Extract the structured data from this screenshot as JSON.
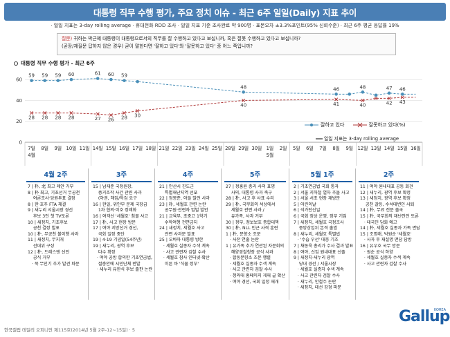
{
  "header": {
    "title": "대통령 직무 수행 평가, 주요 정치 이슈 - 최근 6주 일일(Daily) 지표 추이",
    "subtitle": "· 일일 지표는 3-day rolling average  · 휴대전화 RDD 조사  · 일일 지표 기준 조사완료 약 900명 · 표본오차 ±3.3%포인트(95% 신뢰수준) · 최근 6주 평균 응답률 19%"
  },
  "question": {
    "label": "질문)",
    "line1": "귀하는 박근혜 대통령이 대통령으로서의 직무를 잘 수행하고 있다고 보십니까, 혹은 잘못 수행하고 있다고 보십니까?",
    "line2": "(곧장/재질문 답하지 않은 경우) 굳이 말한다면 '잘하고 있다'와 '잘못하고 있다' 중 어느 쪽입니까?"
  },
  "chart_heading": "대통령 직무 수행 평가 - 최근 6주",
  "legend": {
    "approve": "잘하고 있다",
    "disapprove": "잘못하고 있다(%)",
    "note": "일일 지표는 3-day rolling average"
  },
  "colors": {
    "approve": "#4a8fb8",
    "disapprove": "#b03a3a",
    "heading": "#1f5fa5"
  },
  "chart_data": {
    "type": "line",
    "ylim": [
      0,
      70
    ],
    "yticks": [
      0,
      20,
      40,
      60
    ],
    "x": [
      "7일",
      "8일",
      "9일",
      "10일",
      "11일",
      "14일",
      "15일",
      "16일",
      "17일",
      "18일",
      "21일",
      "22일",
      "23일",
      "24일",
      "25일",
      "28일",
      "29일",
      "30일",
      "1일",
      "2일",
      "5일",
      "6일",
      "7일",
      "8일",
      "9일",
      "12일",
      "13일",
      "14일",
      "15일",
      "16일"
    ],
    "x_sub": {
      "0": "4월",
      "18": "5월"
    },
    "series": [
      {
        "name": "잘하고 있다",
        "values": [
          59,
          59,
          59,
          60,
          null,
          61,
          60,
          59,
          58,
          null,
          null,
          null,
          null,
          null,
          null,
          null,
          48,
          null,
          null,
          null,
          null,
          null,
          null,
          46,
          46,
          48,
          45,
          47,
          46,
          null
        ],
        "labeled": [
          true,
          true,
          true,
          true,
          false,
          true,
          true,
          true,
          false,
          false,
          false,
          false,
          false,
          false,
          false,
          false,
          true,
          false,
          false,
          false,
          false,
          false,
          false,
          true,
          false,
          true,
          false,
          true,
          true,
          false
        ]
      },
      {
        "name": "잘못하고 있다",
        "values": [
          28,
          28,
          28,
          28,
          null,
          27,
          26,
          28,
          30,
          null,
          null,
          null,
          null,
          null,
          null,
          null,
          40,
          null,
          null,
          null,
          null,
          null,
          null,
          41,
          null,
          40,
          42,
          42,
          43,
          null
        ],
        "labeled": [
          true,
          true,
          true,
          true,
          false,
          true,
          true,
          true,
          true,
          false,
          false,
          false,
          false,
          false,
          false,
          false,
          true,
          false,
          false,
          false,
          false,
          false,
          false,
          true,
          false,
          true,
          false,
          true,
          true,
          true
        ]
      }
    ],
    "label_values": {
      "approve": [
        [
          "7일",
          59
        ],
        [
          "8일",
          59
        ],
        [
          "9일",
          59
        ],
        [
          "10일",
          60
        ],
        [
          "14일",
          61
        ],
        [
          "15일",
          60
        ],
        [
          "16일",
          59
        ],
        [
          "17일",
          58
        ],
        [
          "29일",
          48
        ],
        [
          "8일",
          46
        ],
        [
          "12일",
          48
        ],
        [
          "13일",
          45
        ],
        [
          "14일",
          47
        ],
        [
          "15일",
          46
        ]
      ],
      "disapprove": [
        [
          "7일",
          28
        ],
        [
          "8일",
          28
        ],
        [
          "9일",
          28
        ],
        [
          "10일",
          28
        ],
        [
          "14일",
          27
        ],
        [
          "15일",
          26
        ],
        [
          "16일",
          28
        ],
        [
          "17일",
          30
        ],
        [
          "29일",
          40
        ],
        [
          "8일",
          41
        ],
        [
          "12일",
          40
        ],
        [
          "13일",
          42
        ],
        [
          "14일",
          42
        ],
        [
          "15일",
          43
        ]
      ]
    }
  },
  "sections": [
    {
      "title": "4월 2주",
      "items": [
        "7 | 朴, 北 최고 제안 거부",
        "8 | 朴 최고, 기초선거 무공천",
        "    여론조사·당원투표 결정",
        "8 | 한·호주 FTA 체결",
        "9 | 새누리 서울시장 경선",
        "    후보 3인 첫 TV토론",
        "10 | 새정치, 기초후보",
        "    공천 결정 발표",
        "10 | 朴, 무공천 불이행 사과",
        "11 | 새정치, 무지개",
        "    선대위 구성",
        "12 | 朴, 드레스덴 선언",
        "    공식 거부",
        "   · 북 무인기 추가 발견 파문"
      ]
    },
    {
      "title": "3주",
      "items": [
        "15 | 남재준 국정원장,",
        "    증거조작 사건 관련 사과",
        "    (야권, 해임/특검 요구",
        "16 | 한일, 위안부 문제 국장급",
        "    1차 협의·이호 정례화",
        "16 | 여객선 '세월호' 침몰 사고",
        "17 | 朴, 사고 현장 방문",
        "17 | 여야 지방선거 경선,",
        "    국회 일정 중단",
        "19 | 4·19 기념일(54주년)",
        "19 | 새누리, 광역 후보",
        "    다수 확정",
        "   · 여야 공방 합의한 기초연금법,",
        "    절충안에 시민단체 반발",
        "   · 새누리 유한식 후보 출판 논란"
      ]
    },
    {
      "title": "4주",
      "items": [
        "21 | 안산시 진도군",
        "    특별재난지역 선포",
        "22 | 정몽준, 아들 발언 사과",
        "23 | 朴, 세월호 관련 논란",
        "    공무원·관련자 엄벌 발언",
        "21 | 교육부, 초중고 1학기",
        "    수학여행 전면금지",
        "24 | 새정치, 세월호 사고",
        "    관련 사과문 발표",
        "25 | 오바마 대통령 방한",
        "   · 세월호 실종자 수색 계속",
        "   · 사고 관련자 검찰 수사",
        "   · 세월호 참사 인터넷·확산",
        "    이른 바 '식물 정부'"
      ]
    },
    {
      "title": "5주",
      "items": [
        "27 | 정홍원 총리 사의 표명",
        "    사의, 대통령 사과 촉구",
        "28 | 朴, 사고 후 사표 수리",
        "29 | 朴, 국무회의 석상에서",
        "    세월호 관련 사과 /",
        "    유가족, 사과 거부",
        "30 | 정부, 정보보호 종합대책",
        "30 | 朴, NLL 인근 사격 훈련",
        "1 | 朴, 분향소 조문",
        "   · 사전 연출 논란",
        "1 | 유가족 추가 연관된 자문회의",
        "    해양경찰청장 공식 사과",
        "   · 합동분향소 조문 행렬",
        "   · 세월호 실종자 수색 계속",
        "   · 사고 관련자 검찰 수사",
        "   · 청와대 홈페이지 게재 글 확산",
        "   · 여야 경선, 국회 일정 재개"
      ]
    },
    {
      "title": "5월 1주",
      "items": [
        "2 | 기초연금법 국회 통과",
        "2 | 서울 지하철 열차 추돌 사고",
        "3 | 서울 서초 현장 재방문",
        "5 | 어린이날",
        "6 | 석가탄신일",
        "6 | 국회 정상 운영, 정부 기업",
        "7 | 새정치, 세월호 국정조사",
        "    중앙상임위 본격 출범",
        "8 | 새누리, 세월호 특별법",
        "   · '수습 우선' 대응 기조",
        "7 | 채동욱 총리가 수사 결과 발표",
        "8 | 여야, 신임 원내대표 선출",
        "9 | 새정치·새누리 광역",
        "    당내 경선 / 서울시장",
        "   · 세월호 실종자 수색 계속",
        "   · 사고 관련자 검찰 수사",
        "   · 새누리, 안철수 논란",
        "   · 새정치, 대선 강경 파문"
      ]
    },
    {
      "title": "2주",
      "items": [
        "11 | 여야 원내대표 공동 회견",
        "12 | 새누리, 광역 후보 확정",
        "13 | 새정치, 광역 후보 확정",
        "    공천 갈등, 수석대변인 사퇴",
        "14 | 朴, 무료 전문 출국",
        "15 | 朴, 국무회의 재난안전 토론",
        "   · 대국민 담화 예고",
        "14 | 朴, 세월호 실종자 가족 면담",
        "15 | 조명래, 박원순 '세월호'",
        "   · 사과 후 재설명 면담 답방",
        "16 | 유우호 국무 방문",
        "   · 원순 공식 하양",
        "   · 세월호 실종자 수색 계속",
        "   · 사고 관련자 검찰 수사"
      ]
    }
  ],
  "footer": "한국갤럽 데일리 오피니언 제115호(2014년 5월 2주-12~15일) · 5",
  "logo": {
    "text": "Gallup",
    "sub": "KOREA"
  }
}
